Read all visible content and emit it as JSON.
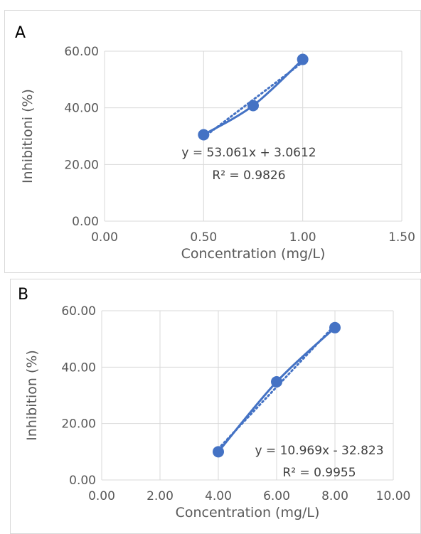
{
  "colors": {
    "series": "#4472c4",
    "grid": "#d9d9d9",
    "text": "#595959"
  },
  "chart_data": [
    {
      "type": "scatter",
      "panel_label": "A",
      "title": "",
      "xlabel": "Concentration (mg/L)",
      "ylabel": "Inhibitioni (%)",
      "xlim": [
        0,
        1.5
      ],
      "ylim": [
        0,
        60
      ],
      "x_ticks": [
        "0.00",
        "0.50",
        "1.00",
        "1.50"
      ],
      "y_ticks": [
        "0.00",
        "20.00",
        "40.00",
        "60.00"
      ],
      "series": [
        {
          "x": [
            0.5,
            0.75,
            1.0
          ],
          "y": [
            30.5,
            40.8,
            57.1
          ],
          "marker": "circle",
          "line": "smooth"
        }
      ],
      "trendline": {
        "type": "linear",
        "slope": 53.061,
        "intercept": 3.0612,
        "style": "dotted"
      },
      "annotations": [
        "y = 53.061x + 3.0612",
        "R² = 0.9826"
      ],
      "grid": true,
      "legend": "none"
    },
    {
      "type": "scatter",
      "panel_label": "B",
      "title": "",
      "xlabel": "Concentration (mg/L)",
      "ylabel": "Inhibition (%)",
      "xlim": [
        0,
        10
      ],
      "ylim": [
        0,
        60
      ],
      "x_ticks": [
        "0.00",
        "2.00",
        "4.00",
        "6.00",
        "8.00",
        "10.00"
      ],
      "y_ticks": [
        "0.00",
        "20.00",
        "40.00",
        "60.00"
      ],
      "series": [
        {
          "x": [
            4,
            6,
            8
          ],
          "y": [
            10.0,
            34.8,
            54.0
          ],
          "marker": "circle",
          "line": "smooth"
        }
      ],
      "trendline": {
        "type": "linear",
        "slope": 10.969,
        "intercept": -32.823,
        "style": "dotted"
      },
      "annotations": [
        "y = 10.969x - 32.823",
        "R² = 0.9955"
      ],
      "grid": true,
      "legend": "none"
    }
  ]
}
